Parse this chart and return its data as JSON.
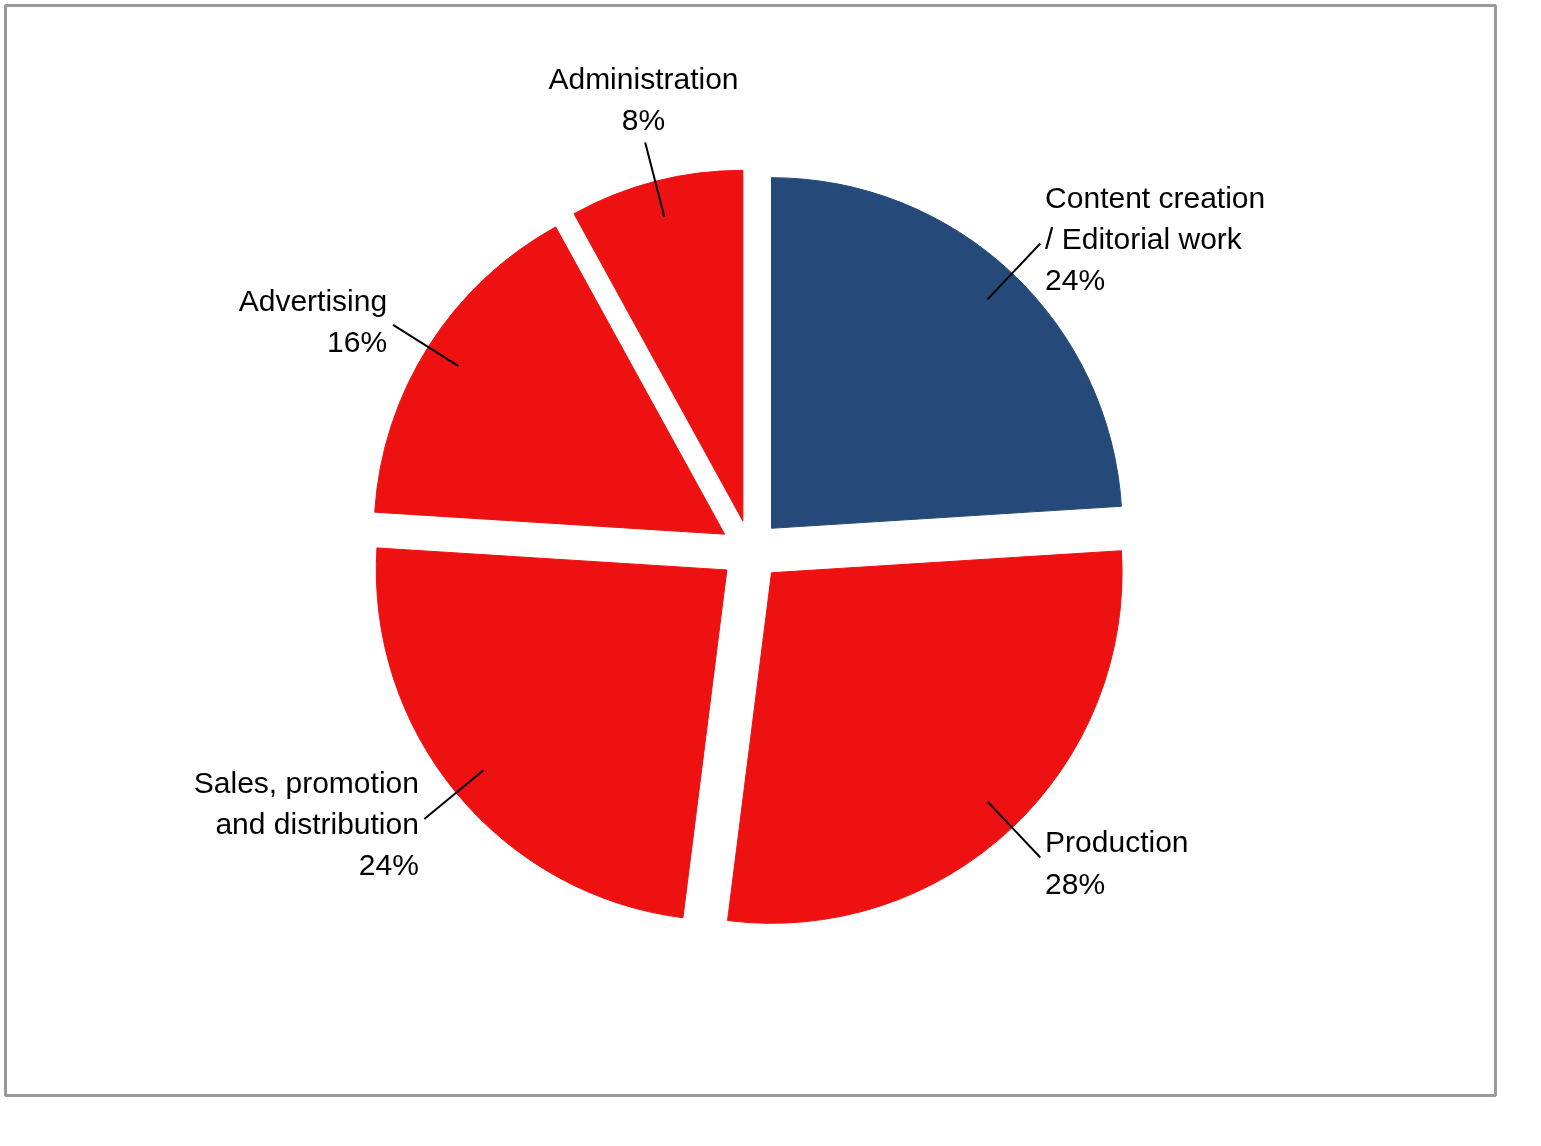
{
  "chart_data": {
    "type": "pie",
    "categories": [
      "Content creation / Editorial work",
      "Production",
      "Sales, promotion and distribution",
      "Advertising",
      "Administration"
    ],
    "values": [
      24,
      28,
      24,
      16,
      8
    ],
    "value_labels": [
      "24%",
      "28%",
      "24%",
      "16%",
      "8%"
    ],
    "colors": [
      "#254a7a",
      "#ee1111",
      "#ee1111",
      "#ee1111",
      "#ee1111"
    ]
  }
}
